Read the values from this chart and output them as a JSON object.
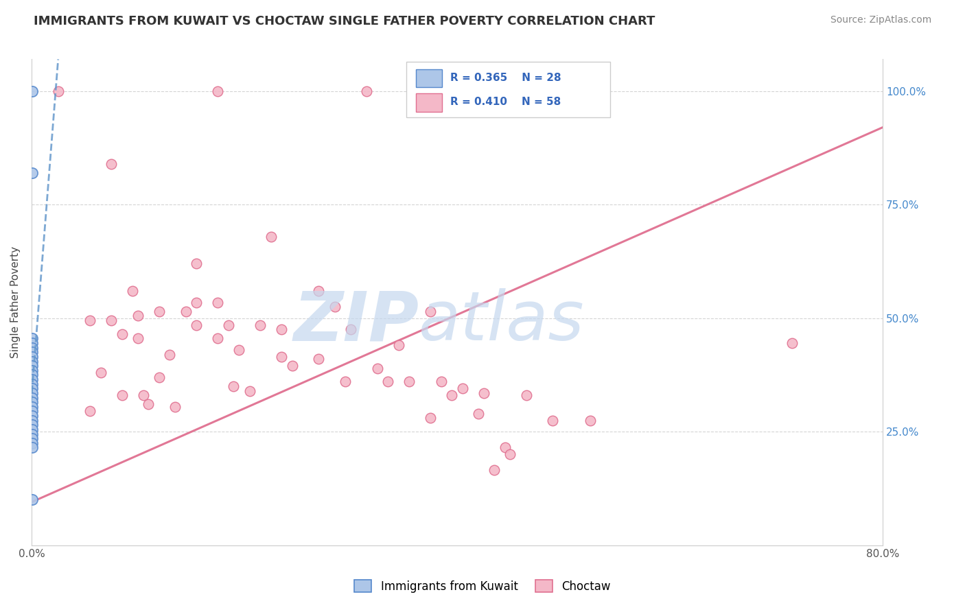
{
  "title": "IMMIGRANTS FROM KUWAIT VS CHOCTAW SINGLE FATHER POVERTY CORRELATION CHART",
  "source": "Source: ZipAtlas.com",
  "ylabel": "Single Father Poverty",
  "legend_blue_r": "R = 0.365",
  "legend_blue_n": "N = 28",
  "legend_pink_r": "R = 0.410",
  "legend_pink_n": "N = 58",
  "blue_fill": "#adc6e8",
  "blue_edge": "#5588cc",
  "pink_fill": "#f4b8c8",
  "pink_edge": "#e07090",
  "blue_line_color": "#6699cc",
  "pink_line_color": "#e07090",
  "watermark_zip_color": "#c5d8ee",
  "watermark_atlas_color": "#c5d8ee",
  "blue_points": [
    [
      0.0008,
      1.0
    ],
    [
      0.0008,
      0.82
    ],
    [
      0.0005,
      0.455
    ],
    [
      0.0005,
      0.445
    ],
    [
      0.0005,
      0.435
    ],
    [
      0.0005,
      0.425
    ],
    [
      0.0005,
      0.415
    ],
    [
      0.0005,
      0.405
    ],
    [
      0.0005,
      0.395
    ],
    [
      0.0005,
      0.385
    ],
    [
      0.0005,
      0.375
    ],
    [
      0.0005,
      0.365
    ],
    [
      0.0005,
      0.355
    ],
    [
      0.0005,
      0.345
    ],
    [
      0.0005,
      0.335
    ],
    [
      0.0005,
      0.325
    ],
    [
      0.0005,
      0.315
    ],
    [
      0.0005,
      0.305
    ],
    [
      0.0005,
      0.295
    ],
    [
      0.0005,
      0.285
    ],
    [
      0.0005,
      0.275
    ],
    [
      0.0005,
      0.265
    ],
    [
      0.0005,
      0.255
    ],
    [
      0.0005,
      0.245
    ],
    [
      0.0005,
      0.235
    ],
    [
      0.0005,
      0.225
    ],
    [
      0.0005,
      0.215
    ],
    [
      0.0005,
      0.1
    ]
  ],
  "pink_points": [
    [
      0.025,
      1.0
    ],
    [
      0.175,
      1.0
    ],
    [
      0.315,
      1.0
    ],
    [
      0.365,
      1.0
    ],
    [
      0.075,
      0.84
    ],
    [
      0.225,
      0.68
    ],
    [
      0.155,
      0.62
    ],
    [
      0.095,
      0.56
    ],
    [
      0.27,
      0.56
    ],
    [
      0.155,
      0.535
    ],
    [
      0.175,
      0.535
    ],
    [
      0.285,
      0.525
    ],
    [
      0.12,
      0.515
    ],
    [
      0.145,
      0.515
    ],
    [
      0.375,
      0.515
    ],
    [
      0.1,
      0.505
    ],
    [
      0.055,
      0.495
    ],
    [
      0.075,
      0.495
    ],
    [
      0.155,
      0.485
    ],
    [
      0.185,
      0.485
    ],
    [
      0.215,
      0.485
    ],
    [
      0.235,
      0.475
    ],
    [
      0.3,
      0.475
    ],
    [
      0.085,
      0.465
    ],
    [
      0.1,
      0.455
    ],
    [
      0.175,
      0.455
    ],
    [
      0.345,
      0.44
    ],
    [
      0.195,
      0.43
    ],
    [
      0.13,
      0.42
    ],
    [
      0.235,
      0.415
    ],
    [
      0.27,
      0.41
    ],
    [
      0.245,
      0.395
    ],
    [
      0.325,
      0.39
    ],
    [
      0.065,
      0.38
    ],
    [
      0.12,
      0.37
    ],
    [
      0.295,
      0.36
    ],
    [
      0.335,
      0.36
    ],
    [
      0.355,
      0.36
    ],
    [
      0.385,
      0.36
    ],
    [
      0.19,
      0.35
    ],
    [
      0.405,
      0.345
    ],
    [
      0.205,
      0.34
    ],
    [
      0.425,
      0.335
    ],
    [
      0.085,
      0.33
    ],
    [
      0.105,
      0.33
    ],
    [
      0.395,
      0.33
    ],
    [
      0.465,
      0.33
    ],
    [
      0.11,
      0.31
    ],
    [
      0.135,
      0.305
    ],
    [
      0.055,
      0.295
    ],
    [
      0.42,
      0.29
    ],
    [
      0.375,
      0.28
    ],
    [
      0.49,
      0.275
    ],
    [
      0.525,
      0.275
    ],
    [
      0.445,
      0.215
    ],
    [
      0.45,
      0.2
    ],
    [
      0.715,
      0.445
    ],
    [
      0.435,
      0.165
    ]
  ],
  "xlim": [
    0.0,
    0.8
  ],
  "ylim": [
    0.0,
    1.07
  ],
  "pink_trend_x": [
    0.0,
    0.8
  ],
  "pink_trend_y": [
    0.095,
    0.92
  ],
  "blue_trend_x": [
    -0.002,
    0.025
  ],
  "blue_trend_y": [
    0.27,
    1.07
  ]
}
